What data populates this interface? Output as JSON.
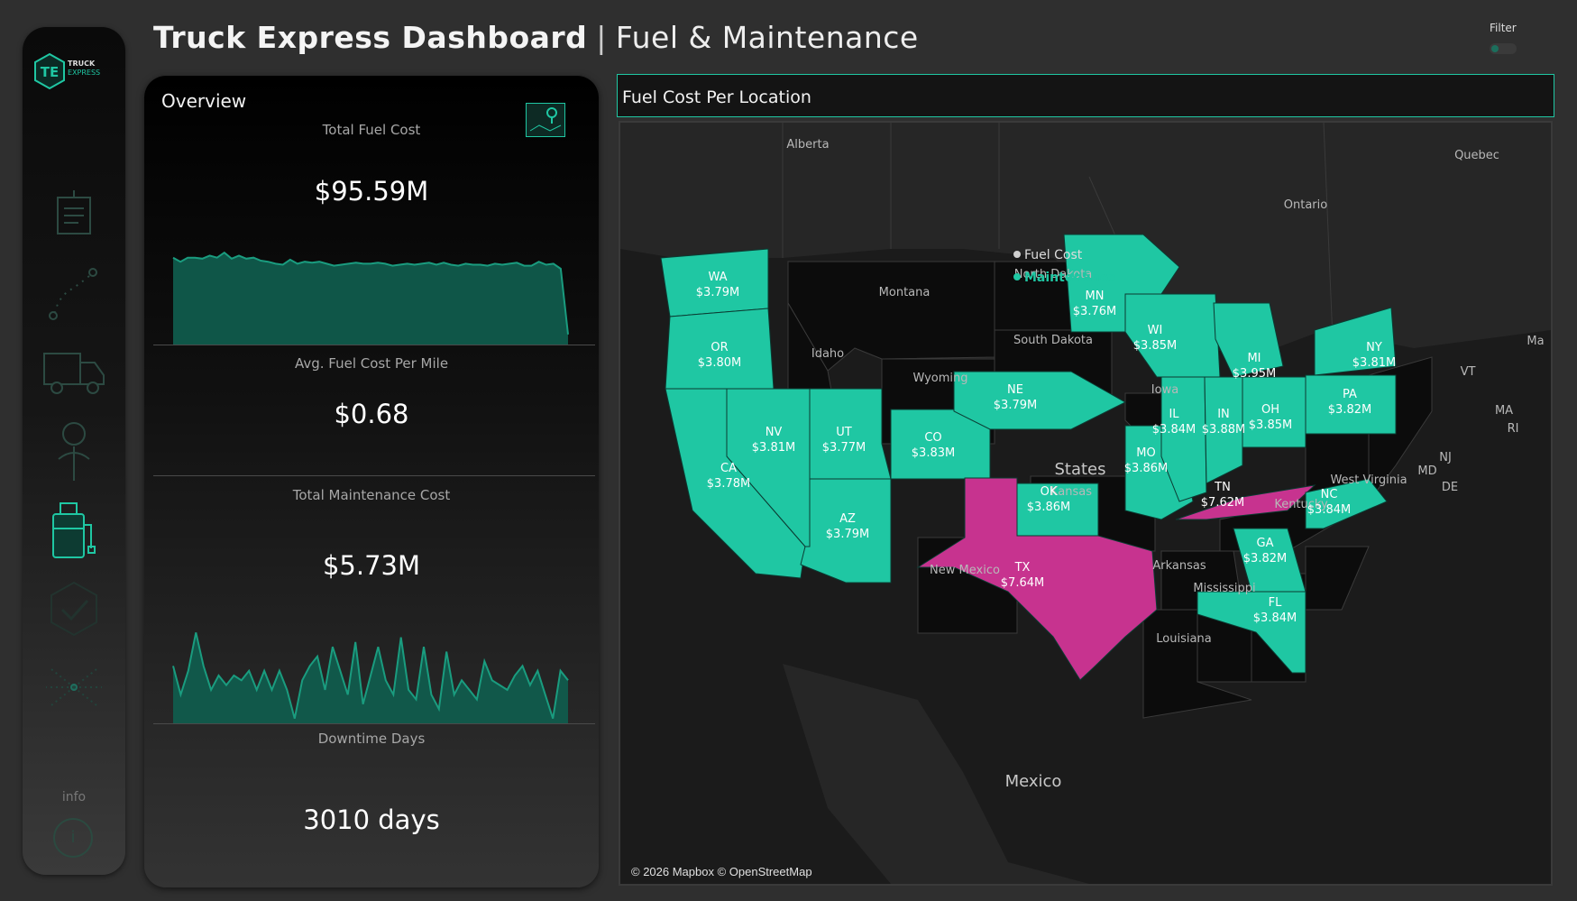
{
  "header": {
    "title_bold": "Truck Express Dashboard",
    "separator": "|",
    "title_sub": "Fuel & Maintenance",
    "filter_label": "Filter"
  },
  "sidebar": {
    "logo_initials": "TE",
    "logo_line1": "TRUCK",
    "logo_line2": "EXPRESS",
    "items": [
      {
        "icon": "report-icon"
      },
      {
        "icon": "route-icon"
      },
      {
        "icon": "truck-icon"
      },
      {
        "icon": "driver-icon"
      },
      {
        "icon": "fuel-icon",
        "active": true
      },
      {
        "icon": "check-icon"
      },
      {
        "icon": "network-icon"
      }
    ],
    "info_label": "info",
    "info_glyph": "i"
  },
  "overview": {
    "title": "Overview",
    "kpis": [
      {
        "label": "Total Fuel Cost",
        "value": "$95.59M"
      },
      {
        "label": "Avg. Fuel Cost Per Mile",
        "value": "$0.68"
      },
      {
        "label": "Total Maintenance Cost",
        "value": "$5.73M"
      },
      {
        "label": "Downtime Days",
        "value": "3010 days"
      }
    ],
    "fuel_trend": [
      0.86,
      0.82,
      0.86,
      0.86,
      0.85,
      0.88,
      0.86,
      0.91,
      0.85,
      0.88,
      0.85,
      0.86,
      0.83,
      0.82,
      0.8,
      0.79,
      0.84,
      0.8,
      0.82,
      0.81,
      0.82,
      0.8,
      0.78,
      0.79,
      0.8,
      0.81,
      0.8,
      0.8,
      0.81,
      0.8,
      0.78,
      0.79,
      0.8,
      0.79,
      0.8,
      0.81,
      0.79,
      0.81,
      0.79,
      0.78,
      0.8,
      0.79,
      0.79,
      0.78,
      0.8,
      0.79,
      0.8,
      0.81,
      0.78,
      0.78,
      0.82,
      0.79,
      0.8,
      0.75,
      0.1
    ],
    "maintenance_trend": [
      0.6,
      0.3,
      0.55,
      0.95,
      0.6,
      0.35,
      0.5,
      0.4,
      0.5,
      0.45,
      0.55,
      0.35,
      0.55,
      0.35,
      0.55,
      0.35,
      0.05,
      0.45,
      0.6,
      0.7,
      0.35,
      0.8,
      0.55,
      0.3,
      0.85,
      0.2,
      0.5,
      0.8,
      0.45,
      0.3,
      0.9,
      0.35,
      0.25,
      0.8,
      0.3,
      0.15,
      0.75,
      0.3,
      0.45,
      0.35,
      0.25,
      0.65,
      0.45,
      0.4,
      0.35,
      0.5,
      0.6,
      0.4,
      0.55,
      0.3,
      0.05,
      0.55,
      0.45
    ]
  },
  "map": {
    "title": "Fuel Cost Per Location",
    "credit": "© 2026 Mapbox © OpenStreetMap",
    "legend": [
      {
        "label": "Fuel Cost",
        "color": "#cfcfcf"
      },
      {
        "label": "Maintenance",
        "color": "#1fc7a3"
      }
    ],
    "colors": {
      "normal": "#1fc7a3",
      "high": "#c7338f",
      "land": "#2a2a2a",
      "unshaded": "#0c0c0c"
    },
    "states": [
      {
        "abbr": "WA",
        "value": "$3.79M"
      },
      {
        "abbr": "OR",
        "value": "$3.80M"
      },
      {
        "abbr": "CA",
        "value": "$3.78M"
      },
      {
        "abbr": "NV",
        "value": "$3.81M"
      },
      {
        "abbr": "UT",
        "value": "$3.77M"
      },
      {
        "abbr": "AZ",
        "value": "$3.79M"
      },
      {
        "abbr": "CO",
        "value": "$3.83M"
      },
      {
        "abbr": "NE",
        "value": "$3.79M"
      },
      {
        "abbr": "OK",
        "value": "$3.86M"
      },
      {
        "abbr": "TX",
        "value": "$7.64M"
      },
      {
        "abbr": "MN",
        "value": "$3.76M"
      },
      {
        "abbr": "WI",
        "value": "$3.85M"
      },
      {
        "abbr": "MO",
        "value": "$3.86M"
      },
      {
        "abbr": "IL",
        "value": "$3.84M"
      },
      {
        "abbr": "IN",
        "value": "$3.88M"
      },
      {
        "abbr": "MI",
        "value": "$3.95M"
      },
      {
        "abbr": "OH",
        "value": "$3.85M"
      },
      {
        "abbr": "TN",
        "value": "$7.62M"
      },
      {
        "abbr": "GA",
        "value": "$3.82M"
      },
      {
        "abbr": "FL",
        "value": "$3.84M"
      },
      {
        "abbr": "NC",
        "value": "$3.84M"
      },
      {
        "abbr": "PA",
        "value": "$3.82M"
      },
      {
        "abbr": "NY",
        "value": "$3.81M"
      }
    ],
    "place_labels": [
      "Alberta",
      "Quebec",
      "Ontario",
      "Montana",
      "Idaho",
      "North Dakota",
      "South Dakota",
      "Wyoming",
      "Iowa",
      "Kansas",
      "New Mexico",
      "Arkansas",
      "Mississippi",
      "Louisiana",
      "Kentucky",
      "West Virginia",
      "VT",
      "MA",
      "RI",
      "NJ",
      "MD",
      "DE",
      "Ma"
    ],
    "country_labels": [
      "States",
      "Mexico"
    ]
  }
}
